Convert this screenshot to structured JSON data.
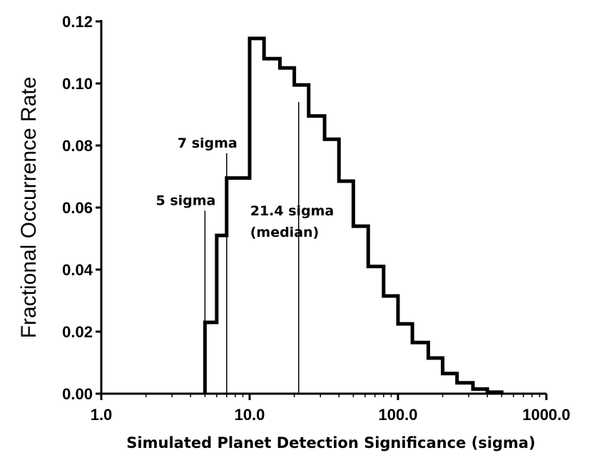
{
  "chart_data": {
    "type": "histogram",
    "xlabel": "Simulated Planet Detection Significance (sigma)",
    "ylabel": "Fractional Occurrence Rate",
    "xscale": "log",
    "xlim": [
      1.0,
      1000.0
    ],
    "ylim": [
      0.0,
      0.12
    ],
    "x_ticks": [
      1.0,
      10.0,
      100.0,
      1000.0
    ],
    "x_tick_labels": [
      "1.0",
      "10.0",
      "100.0",
      "1000.0"
    ],
    "y_ticks": [
      0.0,
      0.02,
      0.04,
      0.06,
      0.08,
      0.1,
      0.12
    ],
    "y_tick_labels": [
      "0.00",
      "0.02",
      "0.04",
      "0.06",
      "0.08",
      "0.10",
      "0.12"
    ],
    "bins": [
      {
        "x_start": 5.0,
        "x_end": 6.0,
        "value": 0.023
      },
      {
        "x_start": 6.0,
        "x_end": 7.0,
        "value": 0.051
      },
      {
        "x_start": 7.0,
        "x_end": 8.2,
        "value": 0.0695
      },
      {
        "x_start": 8.2,
        "x_end": 10.0,
        "value": 0.0695
      },
      {
        "x_start": 10.0,
        "x_end": 12.5,
        "value": 0.1145
      },
      {
        "x_start": 12.5,
        "x_end": 16.0,
        "value": 0.108
      },
      {
        "x_start": 16.0,
        "x_end": 20.0,
        "value": 0.105
      },
      {
        "x_start": 20.0,
        "x_end": 25.0,
        "value": 0.0995
      },
      {
        "x_start": 25.0,
        "x_end": 32.0,
        "value": 0.0895
      },
      {
        "x_start": 32.0,
        "x_end": 40.0,
        "value": 0.082
      },
      {
        "x_start": 40.0,
        "x_end": 50.0,
        "value": 0.0685
      },
      {
        "x_start": 50.0,
        "x_end": 63.0,
        "value": 0.054
      },
      {
        "x_start": 63.0,
        "x_end": 80.0,
        "value": 0.041
      },
      {
        "x_start": 80.0,
        "x_end": 100.0,
        "value": 0.0315
      },
      {
        "x_start": 100.0,
        "x_end": 125.0,
        "value": 0.0225
      },
      {
        "x_start": 125.0,
        "x_end": 160.0,
        "value": 0.0165
      },
      {
        "x_start": 160.0,
        "x_end": 200.0,
        "value": 0.0115
      },
      {
        "x_start": 200.0,
        "x_end": 250.0,
        "value": 0.0065
      },
      {
        "x_start": 250.0,
        "x_end": 320.0,
        "value": 0.0035
      },
      {
        "x_start": 320.0,
        "x_end": 400.0,
        "value": 0.0015
      },
      {
        "x_start": 400.0,
        "x_end": 500.0,
        "value": 0.0005
      }
    ],
    "reference_lines": [
      {
        "x": 5.0,
        "y_top": 0.059,
        "label_lines": [
          "5 sigma"
        ]
      },
      {
        "x": 7.0,
        "y_top": 0.0775,
        "label_lines": [
          "7 sigma"
        ]
      },
      {
        "x": 21.4,
        "y_top": 0.094,
        "label_lines": [
          "21.4 sigma",
          "(median)"
        ]
      }
    ],
    "grid": false,
    "legend": "none"
  }
}
